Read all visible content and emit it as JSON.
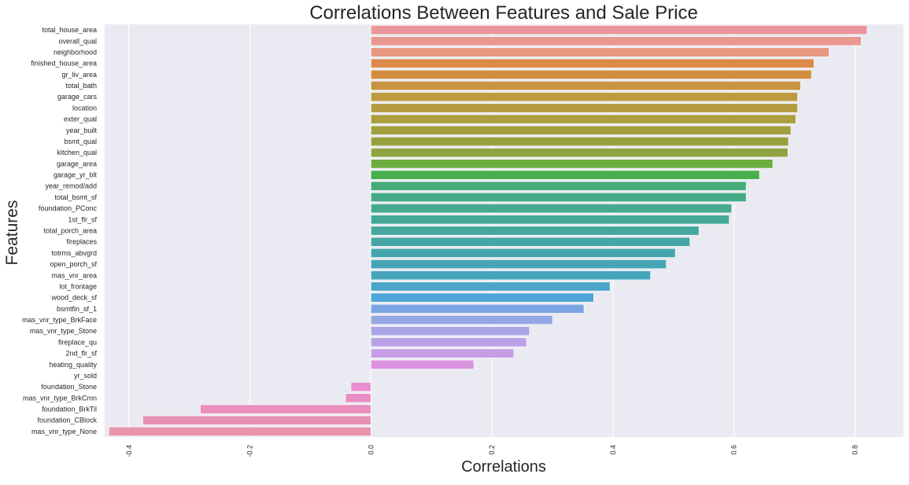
{
  "chart_data": {
    "type": "bar",
    "orientation": "horizontal",
    "title": "Correlations Between Features and Sale Price",
    "xlabel": "Correlations",
    "ylabel": "Features",
    "xlim": [
      -0.44,
      0.88
    ],
    "xticks": [
      -0.4,
      -0.2,
      0.0,
      0.2,
      0.4,
      0.6,
      0.8
    ],
    "xtick_labels": [
      "-0.4",
      "-0.2",
      "0.0",
      "0.2",
      "0.4",
      "0.6",
      "0.8"
    ],
    "grid": true,
    "background": "#eaeaf2",
    "categories": [
      "total_house_area",
      "overall_qual",
      "neighborhood",
      "finished_house_area",
      "gr_liv_area",
      "total_bath",
      "garage_cars",
      "location",
      "exter_qual",
      "year_built",
      "bsmt_qual",
      "kitchen_qual",
      "garage_area",
      "garage_yr_blt",
      "year_remod/add",
      "total_bsmt_sf",
      "foundation_PConc",
      "1st_flr_sf",
      "total_porch_area",
      "fireplaces",
      "totrms_abvgrd",
      "open_porch_sf",
      "mas_vnr_area",
      "lot_frontage",
      "wood_deck_sf",
      "bsmtfin_sf_1",
      "mas_vnr_type_BrkFace",
      "mas_vnr_type_Stone",
      "fireplace_qu",
      "2nd_flr_sf",
      "heating_quality",
      "yr_sold",
      "foundation_Stone",
      "mas_vnr_type_BrkCmn",
      "foundation_BrkTil",
      "foundation_CBlock",
      "mas_vnr_type_None"
    ],
    "values": [
      0.82,
      0.81,
      0.757,
      0.732,
      0.728,
      0.71,
      0.705,
      0.705,
      0.702,
      0.694,
      0.69,
      0.689,
      0.664,
      0.642,
      0.62,
      0.62,
      0.596,
      0.592,
      0.542,
      0.527,
      0.503,
      0.488,
      0.462,
      0.395,
      0.368,
      0.352,
      0.3,
      0.262,
      0.257,
      0.236,
      0.17,
      0.0,
      -0.033,
      -0.042,
      -0.282,
      -0.377,
      -0.433
    ],
    "colors": [
      "#ea969b",
      "#ea9790",
      "#e7977f",
      "#db8a4a",
      "#d28e3e",
      "#c69442",
      "#bd9a3e",
      "#b49c3e",
      "#ac9e3e",
      "#a29f3e",
      "#99a13f",
      "#91a240",
      "#6cad3e",
      "#48ae4d",
      "#45ac7a",
      "#43aa86",
      "#44a98f",
      "#44a897",
      "#45a79e",
      "#44a6a6",
      "#44a6ad",
      "#46a5b5",
      "#47a5be",
      "#4aa5c8",
      "#4fa5d8",
      "#7aa5e2",
      "#95a6e4",
      "#a8a4e6",
      "#b9a1e7",
      "#c79ce5",
      "#da93e0",
      "#e78fd8",
      "#e88dd1",
      "#e88ec7",
      "#e98fbe",
      "#e891b5",
      "#e894ab"
    ]
  }
}
